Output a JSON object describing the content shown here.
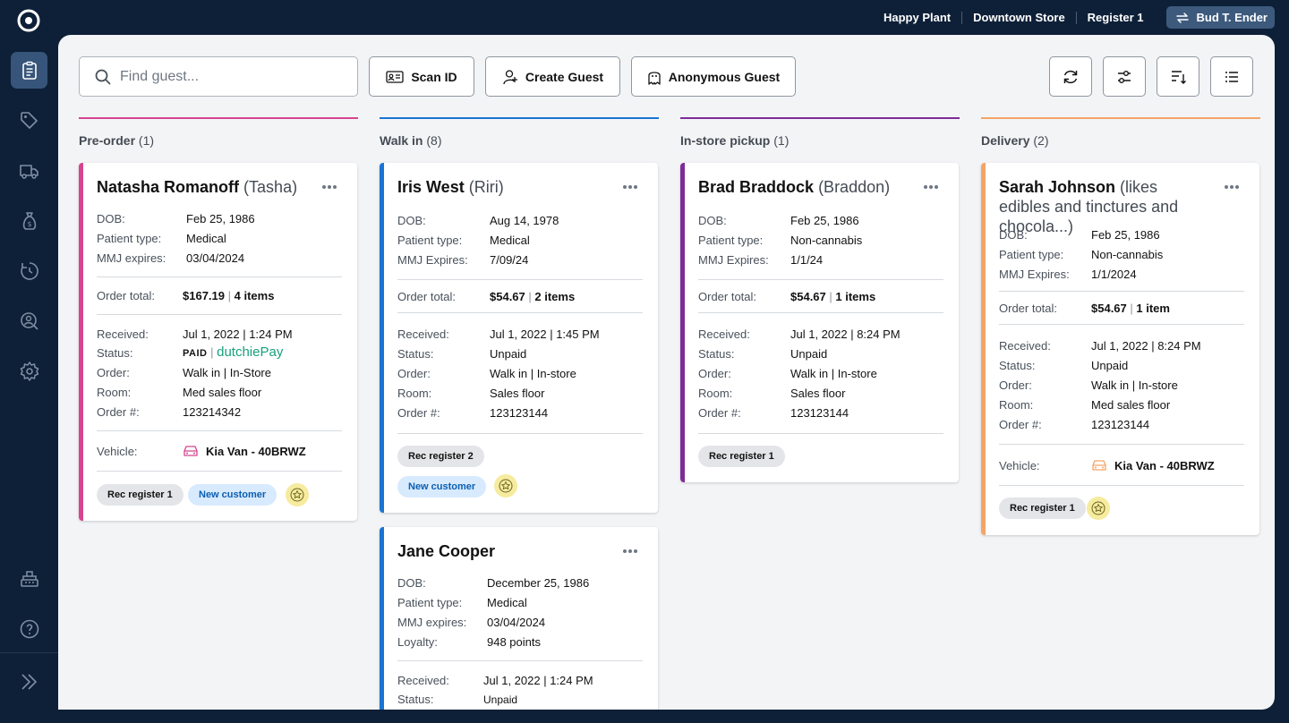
{
  "topbar": {
    "store_group": "Happy Plant",
    "store": "Downtown Store",
    "register": "Register 1",
    "user": "Bud T. Ender"
  },
  "toolbar": {
    "search_placeholder": "Find guest...",
    "scan_id": "Scan ID",
    "create_guest": "Create Guest",
    "anonymous_guest": "Anonymous Guest"
  },
  "colors": {
    "preorder": "#d5458f",
    "walkin": "#1a74d4",
    "pickup": "#7d2c98",
    "delivery": "#f5a466"
  },
  "columns": [
    {
      "title": "Pre-order",
      "count": "(1)"
    },
    {
      "title": "Walk in",
      "count": "(8)"
    },
    {
      "title": "In-store pickup",
      "count": "(1)"
    },
    {
      "title": "Delivery",
      "count": "(2)"
    }
  ],
  "cards": {
    "natasha": {
      "name": "Natasha Romanoff",
      "nick": "(Tasha)",
      "dob_l": "DOB:",
      "dob": "Feb 25, 1986",
      "ptype_l": "Patient type:",
      "ptype": "Medical",
      "mmj_l": "MMJ expires:",
      "mmj": "03/04/2024",
      "total_l": "Order total:",
      "total": "$167.19",
      "items": "4 items",
      "recv_l": "Received:",
      "recv": "Jul 1, 2022 | 1:24 PM",
      "status_l": "Status:",
      "status_paid": "PAID",
      "status_sep": "|",
      "dutchie": "dutchie",
      "pay": "Pay",
      "order_l": "Order:",
      "order": "Walk in | In-Store",
      "room_l": "Room:",
      "room": "Med sales floor",
      "ordno_l": "Order #:",
      "ordno": "123214342",
      "vehicle_l": "Vehicle:",
      "vehicle": "Kia Van - 40BRWZ",
      "tag1": "Rec register 1",
      "tag2": "New customer"
    },
    "iris": {
      "name": "Iris West",
      "nick": "(Riri)",
      "dob_l": "DOB:",
      "dob": "Aug 14, 1978",
      "ptype_l": "Patient type:",
      "ptype": "Medical",
      "mmj_l": "MMJ Expires:",
      "mmj": "7/09/24",
      "total_l": "Order total:",
      "total": "$54.67",
      "items": "2 items",
      "recv_l": "Received:",
      "recv": "Jul 1, 2022 | 1:45 PM",
      "status_l": "Status:",
      "status": "Unpaid",
      "order_l": "Order:",
      "order": "Walk in | In-store",
      "room_l": "Room:",
      "room": "Sales floor",
      "ordno_l": "Order #:",
      "ordno": "123123144",
      "tag1": "Rec register 2",
      "tag2": "New customer"
    },
    "jane": {
      "name": "Jane Cooper",
      "dob_l": "DOB:",
      "dob": "December 25, 1986",
      "ptype_l": "Patient type:",
      "ptype": "Medical",
      "mmj_l": "MMJ expires:",
      "mmj": "03/04/2024",
      "loyalty_l": "Loyalty:",
      "loyalty": "948 points",
      "recv_l": "Received:",
      "recv": "Jul 1, 2022 | 1:24 PM",
      "status_l": "Status:",
      "status": "Unpaid"
    },
    "brad": {
      "name": "Brad Braddock",
      "nick": "(Braddon)",
      "dob_l": "DOB:",
      "dob": "Feb 25, 1986",
      "ptype_l": "Patient type:",
      "ptype": "Non-cannabis",
      "mmj_l": "MMJ Expires:",
      "mmj": "1/1/24",
      "total_l": "Order total:",
      "total": "$54.67",
      "items": "1 items",
      "recv_l": "Received:",
      "recv": "Jul 1, 2022 | 8:24 PM",
      "status_l": "Status:",
      "status": "Unpaid",
      "order_l": "Order:",
      "order": "Walk in | In-store",
      "room_l": "Room:",
      "room": "Sales floor",
      "ordno_l": "Order #:",
      "ordno": "123123144",
      "tag1": "Rec register 1"
    },
    "sarah": {
      "name": "Sarah Johnson",
      "nick": "(likes edibles and tinctures and chocola...)",
      "dob_l": "DOB:",
      "dob": "Feb 25, 1986",
      "ptype_l": "Patient type:",
      "ptype": "Non-cannabis",
      "mmj_l": "MMJ Expires:",
      "mmj": "1/1/2024",
      "total_l": "Order total:",
      "total": "$54.67",
      "items": "1 item",
      "recv_l": "Received:",
      "recv": "Jul 1, 2022 | 8:24 PM",
      "status_l": "Status:",
      "status": "Unpaid",
      "order_l": "Order:",
      "order": "Walk in | In-store",
      "room_l": "Room:",
      "room": "Med sales floor",
      "ordno_l": "Order #:",
      "ordno": "123123144",
      "vehicle_l": "Vehicle:",
      "vehicle": "Kia Van - 40BRWZ",
      "tag1": "Rec register 1"
    }
  }
}
